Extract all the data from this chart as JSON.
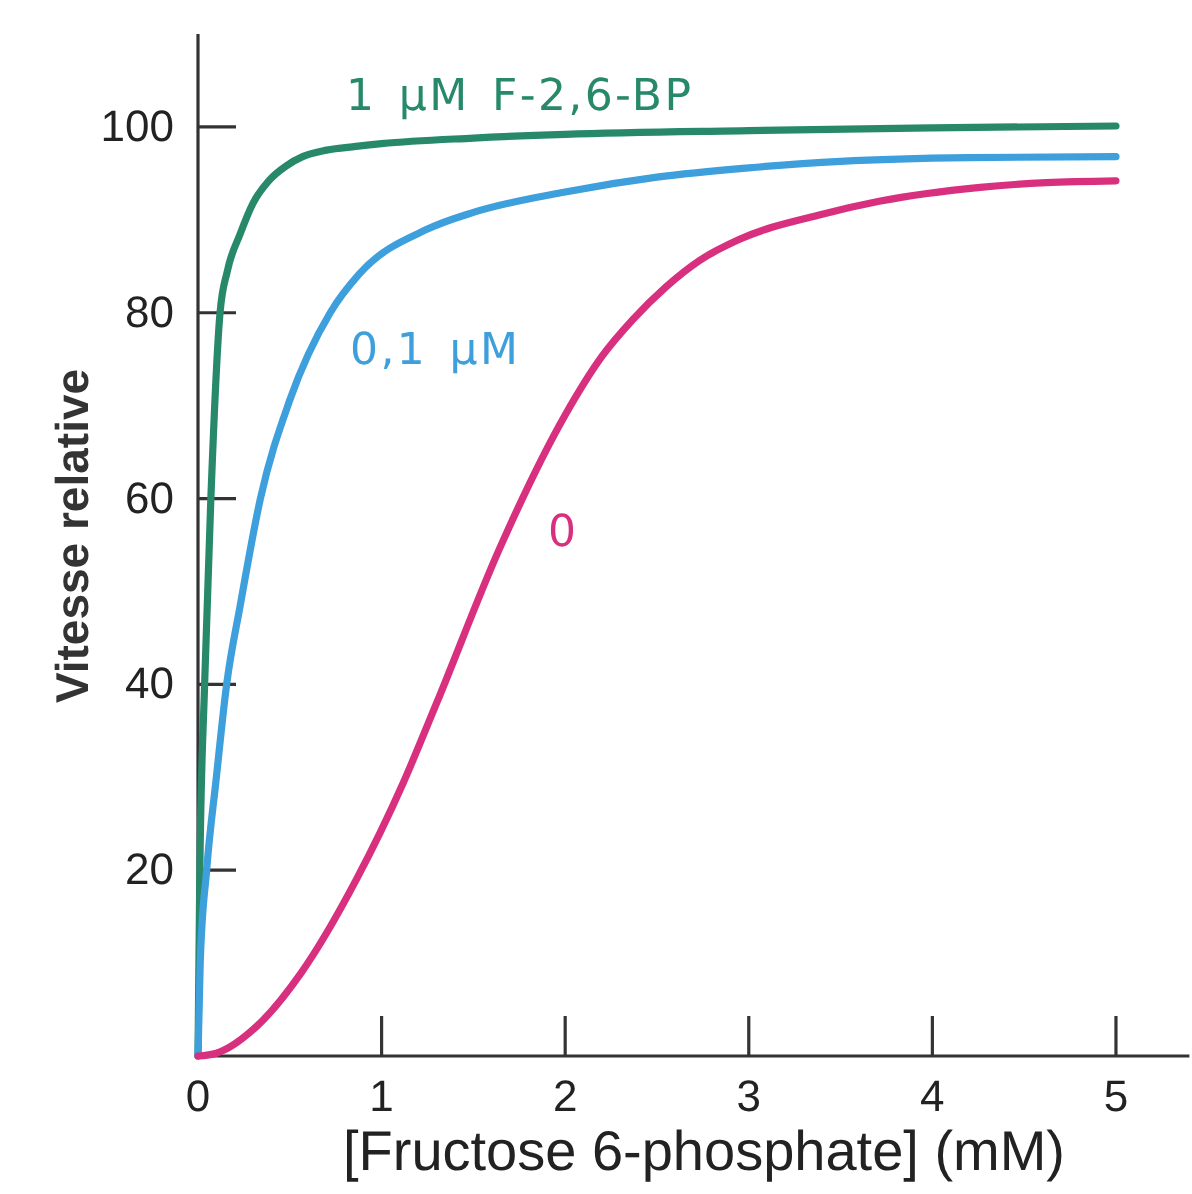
{
  "chart_data": {
    "type": "line",
    "xlabel": "[Fructose 6-phosphate] (mM)",
    "ylabel": "Vitesse relative",
    "xlim": [
      0,
      5.4
    ],
    "ylim": [
      0,
      110
    ],
    "xticks": [
      0,
      1,
      2,
      3,
      4,
      5
    ],
    "yticks": [
      20,
      40,
      60,
      80,
      100
    ],
    "line_style": "solid",
    "series": [
      {
        "name": "1 μM F-2,6-BP",
        "color": "#27896a",
        "x": [
          0,
          0.01,
          0.036,
          0.07,
          0.12,
          0.16,
          0.23,
          0.3,
          0.39,
          0.48,
          0.57,
          0.7,
          0.86,
          1,
          1.5,
          2,
          3,
          4,
          5
        ],
        "values": [
          0,
          20,
          40,
          60,
          80,
          84.5,
          88.5,
          91.8,
          94.3,
          95.8,
          96.8,
          97.5,
          97.9,
          98.2,
          98.8,
          99.2,
          99.6,
          99.9,
          100.1
        ]
      },
      {
        "name": "0,1 μM",
        "color": "#3d9fdc",
        "x": [
          0,
          0.012,
          0.047,
          0.1,
          0.156,
          0.23,
          0.34,
          0.5,
          0.72,
          0.88,
          1.25,
          1.5,
          2,
          2.5,
          3,
          3.5,
          4.2,
          5
        ],
        "values": [
          0,
          10,
          20,
          30,
          40,
          48.5,
          60,
          70.6,
          80,
          84.2,
          89,
          90.8,
          93,
          94.6,
          95.6,
          96.3,
          96.7,
          96.8
        ]
      },
      {
        "name": "0",
        "color": "#d8307f",
        "x": [
          0,
          0.1,
          0.32,
          0.56,
          0.86,
          1.12,
          1.3,
          1.64,
          2,
          2.2,
          2.37,
          2.55,
          2.73,
          2.95,
          3.4,
          3.71,
          4.26,
          4.62,
          5
        ],
        "values": [
          0,
          0.3,
          3.2,
          8.9,
          18.9,
          29.5,
          38,
          54.5,
          69,
          75.3,
          79.3,
          82.8,
          85.6,
          87.9,
          90.6,
          92,
          93.5,
          94,
          94.2
        ]
      }
    ]
  }
}
